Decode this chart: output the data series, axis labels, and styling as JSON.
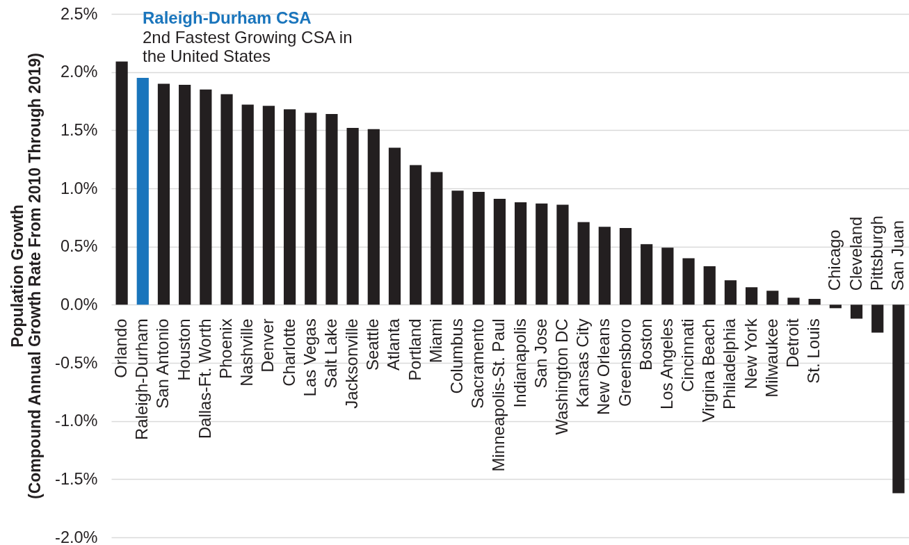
{
  "chart_data": {
    "type": "bar",
    "ylabel": "Population Growth\n(Compound Annual Growth Rate From 2010 Through 2019)",
    "categories": [
      "Orlando",
      "Raleigh-Durham",
      "San Antonio",
      "Houston",
      "Dallas-Ft. Worth",
      "Phoenix",
      "Nashville",
      "Denver",
      "Charlotte",
      "Las Vegas",
      "Salt Lake",
      "Jacksonville",
      "Seattle",
      "Atlanta",
      "Portland",
      "Miami",
      "Columbus",
      "Sacramento",
      "Minneapolis-St. Paul",
      "Indianapolis",
      "San Jose",
      "Washington DC",
      "Kansas City",
      "New Orleans",
      "Greensboro",
      "Boston",
      "Los Angeles",
      "Cincinnati",
      "Virgina Beach",
      "Philadelphia",
      "New York",
      "Milwaukee",
      "Detroit",
      "St. Louis",
      "Chicago",
      "Cleveland",
      "Pittsburgh",
      "San Juan"
    ],
    "values": [
      2.09,
      1.95,
      1.9,
      1.89,
      1.85,
      1.81,
      1.72,
      1.71,
      1.68,
      1.65,
      1.64,
      1.52,
      1.51,
      1.35,
      1.2,
      1.14,
      0.98,
      0.97,
      0.91,
      0.88,
      0.87,
      0.86,
      0.71,
      0.67,
      0.66,
      0.52,
      0.49,
      0.4,
      0.33,
      0.21,
      0.15,
      0.12,
      0.06,
      0.05,
      -0.03,
      -0.12,
      -0.24,
      -1.62
    ],
    "colors": [
      "#231f20",
      "#1a75bc",
      "#231f20",
      "#231f20",
      "#231f20",
      "#231f20",
      "#231f20",
      "#231f20",
      "#231f20",
      "#231f20",
      "#231f20",
      "#231f20",
      "#231f20",
      "#231f20",
      "#231f20",
      "#231f20",
      "#231f20",
      "#231f20",
      "#231f20",
      "#231f20",
      "#231f20",
      "#231f20",
      "#231f20",
      "#231f20",
      "#231f20",
      "#231f20",
      "#231f20",
      "#231f20",
      "#231f20",
      "#231f20",
      "#231f20",
      "#231f20",
      "#231f20",
      "#231f20",
      "#231f20",
      "#231f20",
      "#231f20",
      "#231f20"
    ],
    "ylim": [
      -2.0,
      2.5
    ],
    "yticks": [
      {
        "value": -2.0,
        "label": "-2.0%"
      },
      {
        "value": -1.5,
        "label": "-1.5%"
      },
      {
        "value": -1.0,
        "label": "-1.0%"
      },
      {
        "value": -0.5,
        "label": "-0.5%"
      },
      {
        "value": 0,
        "label": "0.0%"
      },
      {
        "value": 0.5,
        "label": "0.5%"
      },
      {
        "value": 1.0,
        "label": "1.0%"
      },
      {
        "value": 1.5,
        "label": "1.5%"
      },
      {
        "value": 2.0,
        "label": "2.0%"
      },
      {
        "value": 2.5,
        "label": "2.5%"
      }
    ],
    "grid": "y",
    "annotations": [
      "Raleigh-Durham CSA",
      "2nd Fastest Growing CSA in the United States"
    ]
  }
}
